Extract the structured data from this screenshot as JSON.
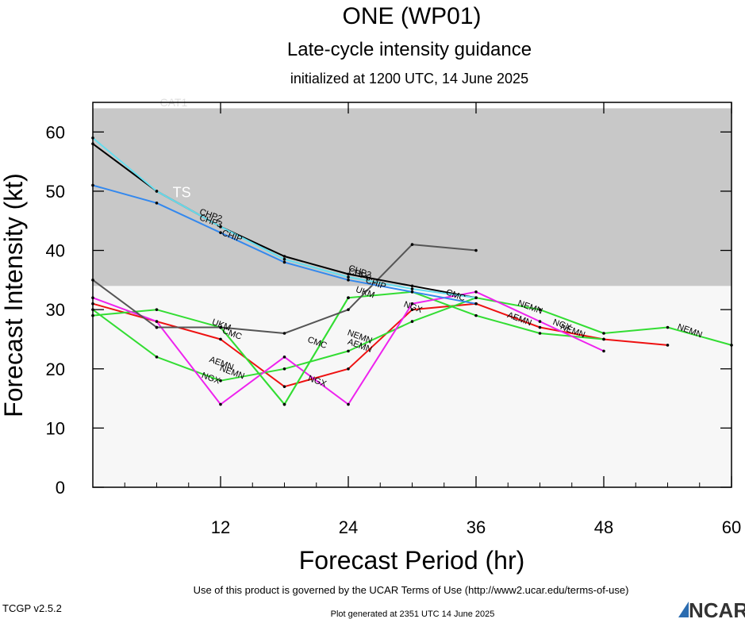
{
  "title": "ONE (WP01)",
  "subtitle": "Late-cycle intensity guidance",
  "init_line": "initialized at 1200 UTC, 14 June 2025",
  "footer": {
    "terms": "Use of this product is governed by the UCAR Terms of Use (http://www2.ucar.edu/terms-of-use)",
    "version": "TCGP v2.5.2",
    "generated": "Plot generated at 2351 UTC   14 June 2025",
    "logo": "NCAR"
  },
  "colors": {
    "upper_band": "#c8c8c8",
    "lower_band": "#f7f7f7",
    "red": "#ee1111",
    "green": "#33dd33",
    "magenta": "#ee22ee",
    "blue": "#3388ee",
    "cyan": "#66ddee",
    "dark": "#555555",
    "black": "#000000"
  },
  "chart_data": {
    "type": "line",
    "title": "ONE (WP01)",
    "xlabel": "Forecast Period (hr)",
    "ylabel": "Forecast Intensity (kt)",
    "xlim": [
      0,
      60
    ],
    "ylim": [
      0,
      65
    ],
    "xticks": [
      12,
      24,
      36,
      48,
      60
    ],
    "yticks": [
      0,
      10,
      20,
      30,
      40,
      50,
      60
    ],
    "threshold_bands": [
      {
        "label": "TS",
        "from": 34,
        "to": 64
      },
      {
        "label": "CAT1",
        "from": 64,
        "to": 65
      }
    ],
    "series": [
      {
        "name": "NEMN",
        "color": "red",
        "x": [
          0,
          12,
          18,
          24,
          30,
          36,
          42,
          48,
          54
        ],
        "y": [
          31,
          25,
          17,
          20,
          30,
          31,
          27,
          25,
          24
        ],
        "labels": [
          {
            "text": "NEMN",
            "x": 45,
            "y": 26
          }
        ]
      },
      {
        "name": "AEMN",
        "color": "green",
        "x": [
          0,
          6,
          12,
          18,
          24,
          30,
          36,
          42,
          48
        ],
        "y": [
          29,
          30,
          27,
          14,
          32,
          33,
          29,
          26,
          25
        ],
        "labels": [
          {
            "text": "AEMN",
            "x": 12,
            "y": 20.5
          },
          {
            "text": "AEMN",
            "x": 25,
            "y": 23.5
          },
          {
            "text": "AEMN",
            "x": 40,
            "y": 28
          }
        ]
      },
      {
        "name": "NEMN",
        "color": "green",
        "x": [
          0,
          6,
          12,
          18,
          24,
          30,
          36,
          42,
          48,
          54,
          60
        ],
        "y": [
          30,
          22,
          18,
          20,
          23,
          28,
          32,
          30,
          26,
          27,
          24
        ],
        "labels": [
          {
            "text": "NEMN",
            "x": 13,
            "y": 19
          },
          {
            "text": "NEMN",
            "x": 25,
            "y": 25
          },
          {
            "text": "NEMN",
            "x": 56,
            "y": 26
          }
        ]
      },
      {
        "name": "NGX",
        "color": "magenta",
        "x": [
          0,
          6,
          12,
          18,
          24,
          30,
          36,
          42,
          48
        ],
        "y": [
          32,
          28,
          14,
          22,
          14,
          31,
          33,
          28,
          23
        ],
        "labels": [
          {
            "text": "NGX",
            "x": 11,
            "y": 18
          },
          {
            "text": "NGX",
            "x": 21,
            "y": 17.5
          },
          {
            "text": "NGX",
            "x": 30,
            "y": 30
          },
          {
            "text": "NGX",
            "x": 44,
            "y": 27
          },
          {
            "text": "NEMN",
            "x": 41,
            "y": 30
          }
        ]
      },
      {
        "name": "CMC",
        "color": "green",
        "x": [
          6,
          12,
          18,
          24
        ],
        "y": [
          27,
          27,
          14,
          32
        ],
        "labels": [
          {
            "text": "CMC",
            "x": 13,
            "y": 25.5
          },
          {
            "text": "CMC",
            "x": 21,
            "y": 24
          },
          {
            "text": "CMC",
            "x": 34,
            "y": 32
          }
        ]
      },
      {
        "name": "UKM",
        "color": "dark",
        "x": [
          0,
          6,
          12,
          18,
          24,
          30,
          36
        ],
        "y": [
          35,
          27,
          27,
          26,
          30,
          41,
          40
        ],
        "labels": [
          {
            "text": "UKM",
            "x": 12,
            "y": 27
          },
          {
            "text": "UKM",
            "x": 25.5,
            "y": 32.5
          }
        ]
      },
      {
        "name": "CHIP",
        "color": "blue",
        "x": [
          0,
          6,
          12,
          18,
          24,
          30,
          36
        ],
        "y": [
          51,
          48,
          43,
          38,
          35,
          33,
          31
        ],
        "labels": [
          {
            "text": "CHIP",
            "x": 13,
            "y": 42
          },
          {
            "text": "CHIP",
            "x": 26.5,
            "y": 34
          }
        ]
      },
      {
        "name": "CHP2",
        "color": "black",
        "x": [
          0,
          6,
          12,
          18,
          24,
          30,
          36
        ],
        "y": [
          58,
          50,
          44,
          39,
          36,
          34,
          32
        ],
        "labels": [
          {
            "text": "CHP2",
            "x": 11,
            "y": 45.5
          },
          {
            "text": "CHP2",
            "x": 25,
            "y": 36
          }
        ]
      },
      {
        "name": "CHP3",
        "color": "cyan",
        "x": [
          0,
          6,
          12,
          18,
          24,
          30,
          36
        ],
        "y": [
          59,
          50,
          44,
          38.5,
          35.5,
          33.5,
          32
        ],
        "labels": [
          {
            "text": "CHP3",
            "x": 11,
            "y": 44.5
          },
          {
            "text": "CHP3",
            "x": 25,
            "y": 35.5
          }
        ]
      }
    ]
  }
}
